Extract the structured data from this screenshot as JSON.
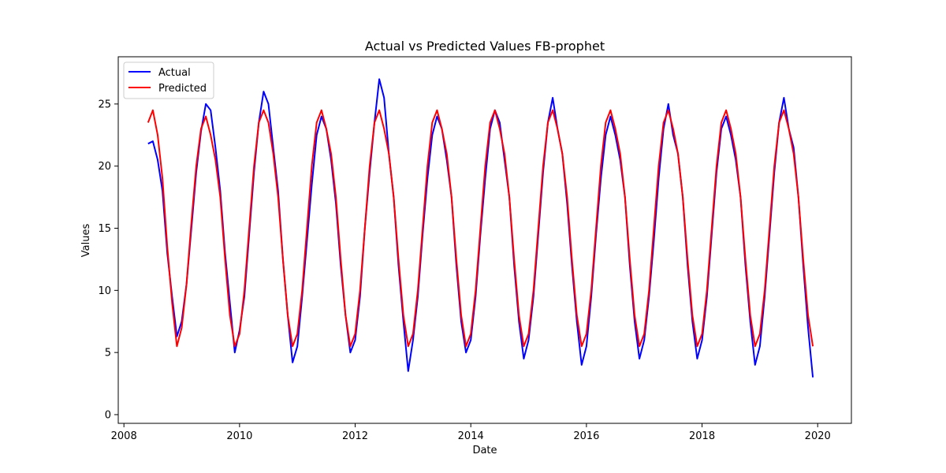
{
  "chart_data": {
    "type": "line",
    "title": "Actual vs Predicted Values FB-prophet",
    "xlabel": "Date",
    "ylabel": "Values",
    "xlim": [
      "2007-11-26",
      "2020-08-01"
    ],
    "ylim": [
      -0.7,
      28.8
    ],
    "x_ticks": [
      "2008",
      "2010",
      "2012",
      "2014",
      "2016",
      "2018",
      "2020"
    ],
    "y_ticks": [
      0,
      5,
      10,
      15,
      20,
      25
    ],
    "grid": false,
    "legend": {
      "placement": "top-left"
    },
    "series": [
      {
        "name": "Actual",
        "color": "#0000ff",
        "sampling": "monthly",
        "x_start": "2008-06",
        "values": [
          21.8,
          22.0,
          20.5,
          18.0,
          13.0,
          9.5,
          6.3,
          7.5,
          10.5,
          15.0,
          19.5,
          22.8,
          25.0,
          24.5,
          21.5,
          18.0,
          13.0,
          9.0,
          5.0,
          6.8,
          9.5,
          14.5,
          19.5,
          23.5,
          26.0,
          25.0,
          21.5,
          18.0,
          12.5,
          8.0,
          4.2,
          5.5,
          9.5,
          14.0,
          18.5,
          22.5,
          24.0,
          23.0,
          20.5,
          17.0,
          12.0,
          8.0,
          5.0,
          6.0,
          9.5,
          15.0,
          19.5,
          23.5,
          27.0,
          25.5,
          21.0,
          17.5,
          12.0,
          7.5,
          3.5,
          6.0,
          9.5,
          14.5,
          19.0,
          22.5,
          24.0,
          23.0,
          20.5,
          17.5,
          12.0,
          7.5,
          5.0,
          6.0,
          9.5,
          14.5,
          19.0,
          23.0,
          24.5,
          23.5,
          20.5,
          17.5,
          12.0,
          7.5,
          4.5,
          6.0,
          9.5,
          14.5,
          19.5,
          23.5,
          25.5,
          23.0,
          21.0,
          17.0,
          12.0,
          7.5,
          4.0,
          5.5,
          9.5,
          14.5,
          19.0,
          22.5,
          24.0,
          22.5,
          20.5,
          17.5,
          12.0,
          7.5,
          4.5,
          6.0,
          9.5,
          14.0,
          19.0,
          23.0,
          25.0,
          22.5,
          21.0,
          17.5,
          12.0,
          7.5,
          4.5,
          6.0,
          9.5,
          14.5,
          19.5,
          23.0,
          24.0,
          22.5,
          20.5,
          17.5,
          12.0,
          7.5,
          4.0,
          5.5,
          9.5,
          14.5,
          19.5,
          23.5,
          25.5,
          23.0,
          21.5,
          17.5,
          12.0,
          7.0,
          3.0
        ]
      },
      {
        "name": "Predicted",
        "color": "#ff0000",
        "sampling": "monthly",
        "x_start": "2008-06",
        "values": [
          23.5,
          24.5,
          22.5,
          19.0,
          13.5,
          9.0,
          5.5,
          7.0,
          10.5,
          15.5,
          20.0,
          23.0,
          24.0,
          22.5,
          20.5,
          17.5,
          12.5,
          8.0,
          5.5,
          6.5,
          10.0,
          15.0,
          20.0,
          23.5,
          24.5,
          23.5,
          21.0,
          17.5,
          12.5,
          8.0,
          5.5,
          6.5,
          10.0,
          15.0,
          20.0,
          23.5,
          24.5,
          23.0,
          21.0,
          17.5,
          12.5,
          8.0,
          5.5,
          6.5,
          10.0,
          15.0,
          20.0,
          23.5,
          24.5,
          23.0,
          21.0,
          17.5,
          12.5,
          8.0,
          5.5,
          6.5,
          10.0,
          15.0,
          20.0,
          23.5,
          24.5,
          23.0,
          21.0,
          17.5,
          12.5,
          8.0,
          5.5,
          6.5,
          10.0,
          15.0,
          20.0,
          23.5,
          24.5,
          23.0,
          21.0,
          17.5,
          12.5,
          8.0,
          5.5,
          6.5,
          10.0,
          15.0,
          20.0,
          23.5,
          24.5,
          23.0,
          21.0,
          17.5,
          12.5,
          8.0,
          5.5,
          6.5,
          10.0,
          15.0,
          20.0,
          23.5,
          24.5,
          23.0,
          21.0,
          17.5,
          12.5,
          8.0,
          5.5,
          6.5,
          10.0,
          15.0,
          20.0,
          23.5,
          24.5,
          23.0,
          21.0,
          17.5,
          12.5,
          8.0,
          5.5,
          6.5,
          10.0,
          15.0,
          20.0,
          23.5,
          24.5,
          23.0,
          21.0,
          17.5,
          12.5,
          8.0,
          5.5,
          6.5,
          10.0,
          15.0,
          20.0,
          23.5,
          24.5,
          23.0,
          21.0,
          17.5,
          12.5,
          8.0,
          5.5
        ]
      }
    ]
  }
}
